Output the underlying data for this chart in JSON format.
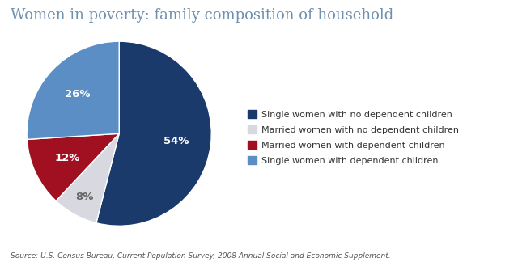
{
  "title": "Women in poverty: family composition of household",
  "title_fontsize": 13,
  "title_color": "#7090b0",
  "source_text": "Source: U.S. Census Bureau, Current Population Survey, 2008 Annual Social and Economic Supplement.",
  "slices": [
    54,
    8,
    12,
    26
  ],
  "pct_labels": [
    "54%",
    "8%",
    "12%",
    "26%"
  ],
  "colors": [
    "#1a3a6b",
    "#d8d8e0",
    "#a01020",
    "#5b8ec4"
  ],
  "legend_labels": [
    "Single women with no dependent children",
    "Married women with no dependent children",
    "Married women with dependent children",
    "Single women with dependent children"
  ],
  "startangle": 90,
  "background_color": "#ffffff",
  "label_colors": [
    "white",
    "#666666",
    "white",
    "white"
  ],
  "label_radii": [
    0.62,
    0.78,
    0.62,
    0.62
  ]
}
